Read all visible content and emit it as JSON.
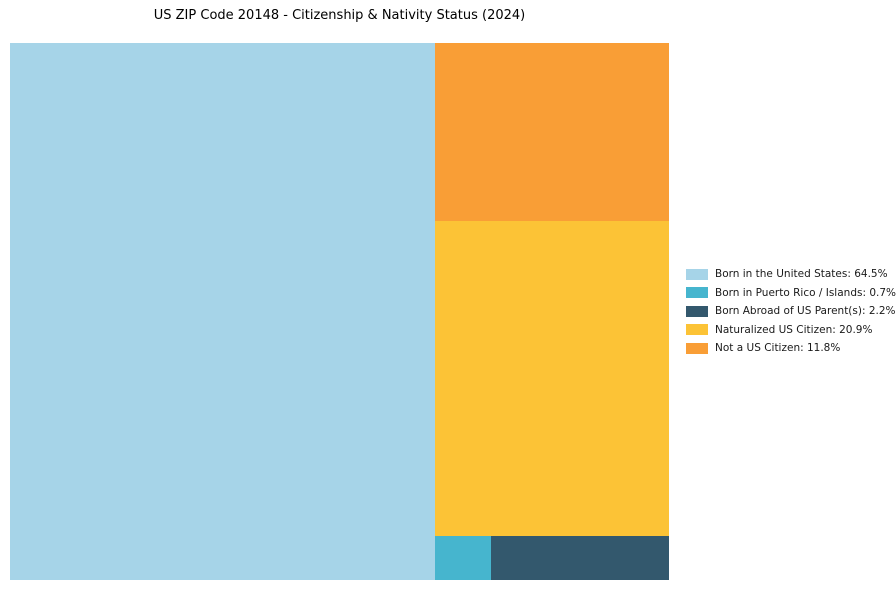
{
  "chart_data": {
    "type": "treemap",
    "title": "US ZIP Code 20148 - Citizenship & Nativity Status (2024)",
    "unit": "%",
    "segments": [
      {
        "label": "Born in the United States",
        "value": 64.5,
        "color": "#A6D4E8",
        "legend_text": "Born in the United States: 64.5%"
      },
      {
        "label": "Born in Puerto Rico / Islands",
        "value": 0.7,
        "color": "#46B5CE",
        "legend_text": "Born in Puerto Rico / Islands: 0.7%"
      },
      {
        "label": "Born Abroad of US Parent(s)",
        "value": 2.2,
        "color": "#33586D",
        "legend_text": "Born Abroad of US Parent(s): 2.2%"
      },
      {
        "label": "Naturalized US Citizen",
        "value": 20.9,
        "color": "#FCC336",
        "legend_text": "Naturalized US Citizen: 20.9%"
      },
      {
        "label": "Not a US Citizen",
        "value": 11.8,
        "color": "#F99E36",
        "legend_text": "Not a US Citizen: 11.8%"
      }
    ],
    "legend_position": "right",
    "layout": {
      "left_block": "Born in the United States",
      "right_column_top_to_bottom": [
        "Not a US Citizen",
        "Naturalized US Citizen",
        "bottom-row"
      ],
      "bottom_row_left_to_right": [
        "Born in Puerto Rico / Islands",
        "Born Abroad of US Parent(s)"
      ],
      "grid": false
    }
  }
}
